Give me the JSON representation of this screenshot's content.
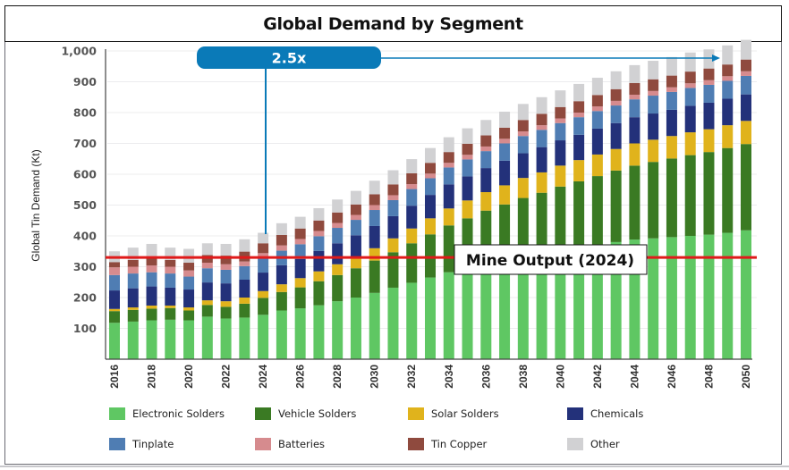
{
  "chart_data": {
    "type": "bar",
    "stacked": true,
    "title": "Global Demand by Segment",
    "xlabel": "",
    "ylabel": "Global Tin Demand (Kt)",
    "ylim": [
      0,
      1000
    ],
    "yticks": [
      "100",
      "200",
      "300",
      "400",
      "500",
      "600",
      "700",
      "800",
      "900",
      "1,000"
    ],
    "ytick_values": [
      100,
      200,
      300,
      400,
      500,
      600,
      700,
      800,
      900,
      1000
    ],
    "grid": true,
    "legend_position": "bottom",
    "categories": [
      "2016",
      "2017",
      "2018",
      "2019",
      "2020",
      "2021",
      "2022",
      "2023",
      "2024",
      "2025",
      "2026",
      "2027",
      "2028",
      "2029",
      "2030",
      "2031",
      "2032",
      "2033",
      "2034",
      "2035",
      "2036",
      "2037",
      "2038",
      "2039",
      "2040",
      "2041",
      "2042",
      "2043",
      "2044",
      "2045",
      "2046",
      "2047",
      "2048",
      "2049",
      "2050"
    ],
    "xtick_labels": [
      "2016",
      "2018",
      "2020",
      "2022",
      "2024",
      "2026",
      "2028",
      "2030",
      "2032",
      "2034",
      "2036",
      "2038",
      "2040",
      "2042",
      "2044",
      "2046",
      "2048",
      "2050"
    ],
    "series": [
      {
        "name": "Electronic Solders",
        "color": "#5fc763",
        "values": [
          118,
          122,
          126,
          128,
          126,
          138,
          132,
          135,
          144,
          158,
          165,
          175,
          188,
          200,
          215,
          232,
          248,
          265,
          282,
          295,
          310,
          322,
          335,
          345,
          355,
          362,
          372,
          380,
          388,
          392,
          396,
          400,
          404,
          410,
          418
        ]
      },
      {
        "name": "Vehicle Solders",
        "color": "#3a7a23",
        "values": [
          38,
          38,
          38,
          38,
          32,
          38,
          38,
          45,
          55,
          60,
          68,
          78,
          85,
          95,
          105,
          115,
          128,
          140,
          152,
          162,
          172,
          180,
          188,
          195,
          205,
          215,
          222,
          232,
          240,
          248,
          255,
          262,
          268,
          275,
          280
        ]
      },
      {
        "name": "Solar Solders",
        "color": "#e0b31c",
        "values": [
          7,
          8,
          10,
          8,
          10,
          15,
          18,
          20,
          22,
          25,
          30,
          32,
          35,
          37,
          40,
          45,
          48,
          52,
          55,
          58,
          60,
          62,
          65,
          66,
          68,
          69,
          70,
          70,
          72,
          72,
          73,
          74,
          74,
          74,
          75
        ]
      },
      {
        "name": "Chemicals",
        "color": "#23317a",
        "values": [
          60,
          62,
          62,
          58,
          58,
          58,
          58,
          58,
          60,
          62,
          62,
          66,
          68,
          70,
          72,
          72,
          74,
          76,
          78,
          78,
          78,
          80,
          80,
          82,
          82,
          82,
          84,
          84,
          85,
          85,
          85,
          86,
          86,
          86,
          86
        ]
      },
      {
        "name": "Tinplate",
        "color": "#4f7db3",
        "values": [
          50,
          48,
          46,
          46,
          42,
          46,
          44,
          44,
          46,
          47,
          48,
          48,
          50,
          50,
          52,
          52,
          54,
          54,
          55,
          55,
          55,
          56,
          56,
          56,
          56,
          57,
          57,
          57,
          58,
          58,
          58,
          58,
          58,
          58,
          60
        ]
      },
      {
        "name": "Batteries",
        "color": "#d68b8e",
        "values": [
          25,
          22,
          22,
          22,
          20,
          18,
          18,
          15,
          17,
          17,
          17,
          17,
          16,
          16,
          16,
          16,
          16,
          15,
          15,
          15,
          15,
          15,
          15,
          15,
          15,
          15,
          15,
          15,
          15,
          15,
          15,
          15,
          15,
          15,
          15
        ]
      },
      {
        "name": "Tin Copper",
        "color": "#8f4a3e",
        "values": [
          17,
          22,
          25,
          22,
          25,
          25,
          28,
          32,
          32,
          34,
          34,
          34,
          34,
          34,
          35,
          35,
          35,
          35,
          35,
          36,
          36,
          36,
          37,
          37,
          37,
          37,
          37,
          38,
          38,
          38,
          38,
          38,
          38,
          38,
          38
        ]
      },
      {
        "name": "Other",
        "color": "#d1d1d3",
        "values": [
          35,
          40,
          45,
          40,
          45,
          38,
          38,
          40,
          34,
          38,
          38,
          40,
          42,
          44,
          44,
          46,
          46,
          48,
          48,
          50,
          50,
          52,
          52,
          54,
          54,
          56,
          56,
          58,
          58,
          60,
          60,
          62,
          62,
          62,
          64
        ]
      }
    ],
    "annotations": [
      {
        "type": "callout",
        "label": "2.5x",
        "from_year": "2024",
        "to_year": "2050",
        "color": "#0a7ab8"
      },
      {
        "type": "hline",
        "label": "Mine Output (2024)",
        "value": 330,
        "color": "#e01a1a"
      }
    ]
  },
  "legend": [
    {
      "label": "Electronic Solders",
      "color": "#5fc763"
    },
    {
      "label": "Vehicle Solders",
      "color": "#3a7a23"
    },
    {
      "label": "Solar Solders",
      "color": "#e0b31c"
    },
    {
      "label": "Chemicals",
      "color": "#23317a"
    },
    {
      "label": "Tinplate",
      "color": "#4f7db3"
    },
    {
      "label": "Batteries",
      "color": "#d68b8e"
    },
    {
      "label": "Tin Copper",
      "color": "#8f4a3e"
    },
    {
      "label": "Other",
      "color": "#d1d1d3"
    }
  ]
}
